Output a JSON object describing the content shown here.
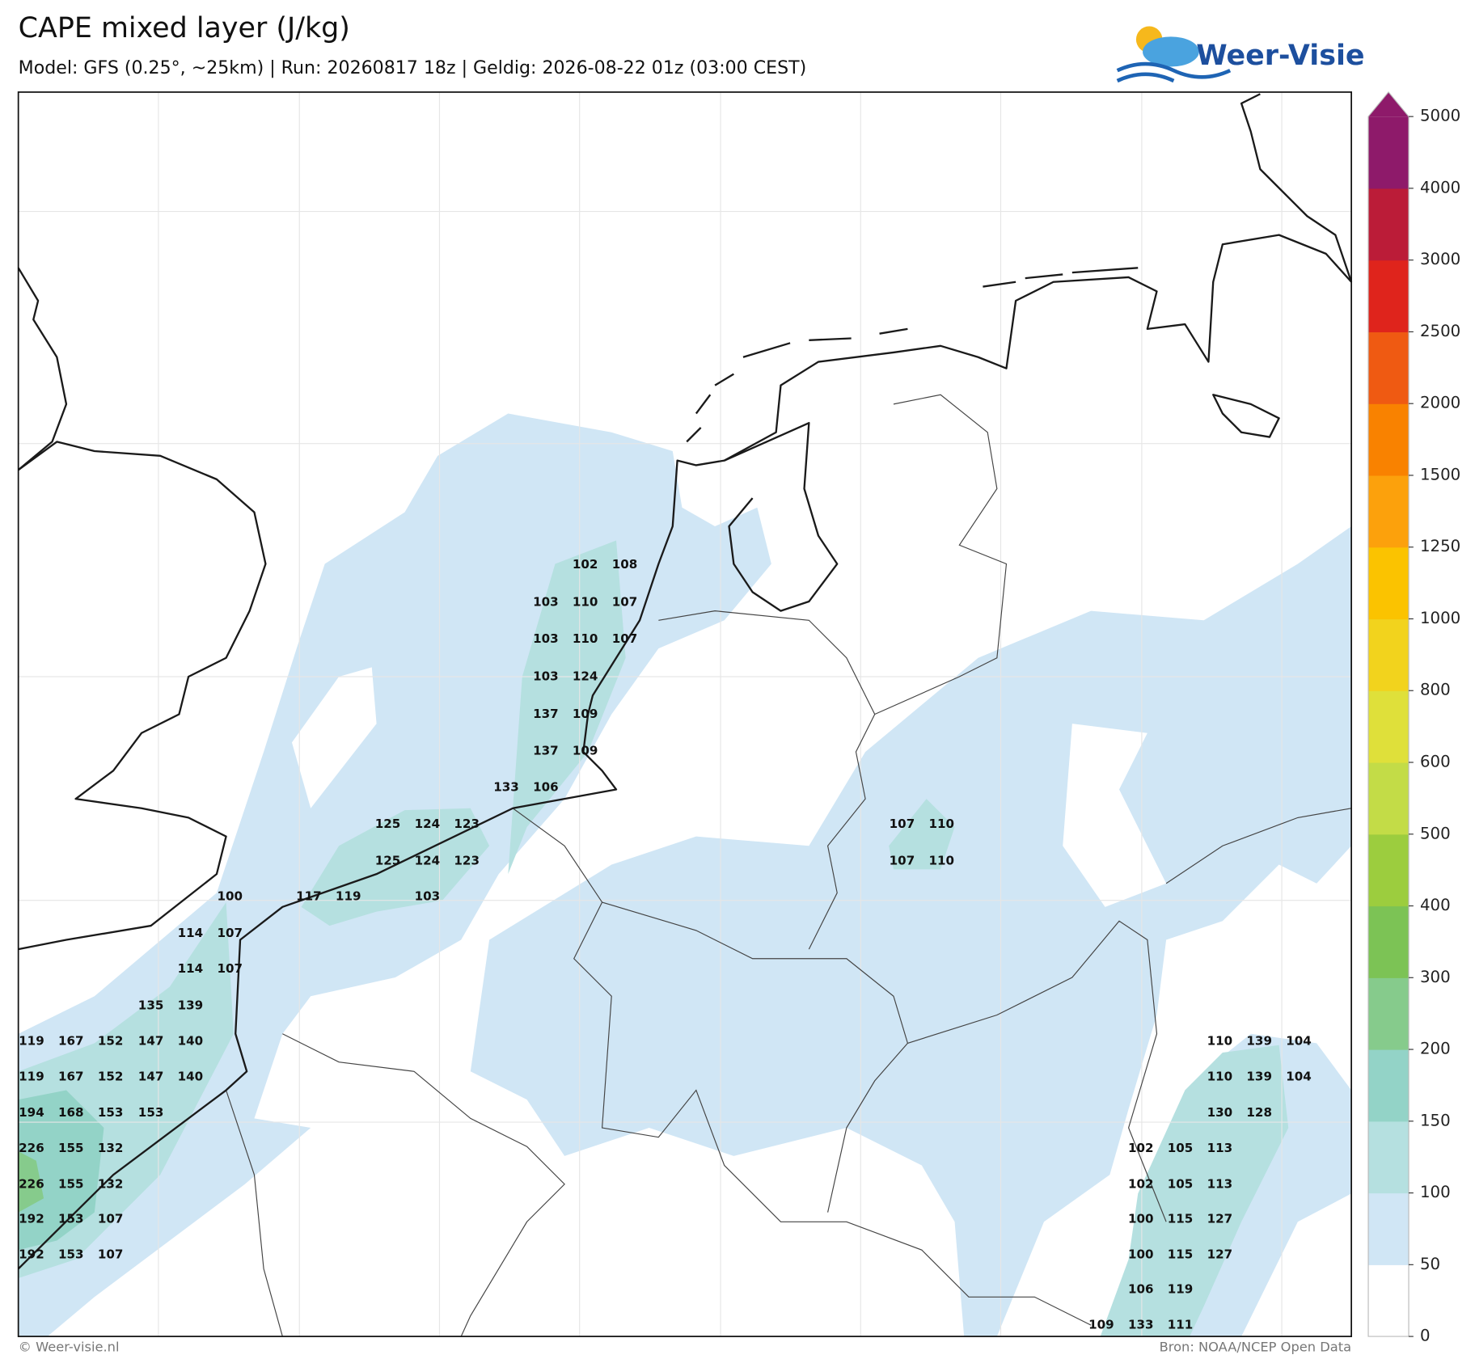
{
  "header": {
    "title": "CAPE mixed layer (J/kg)",
    "subtitle": "Model: GFS (0.25°, ~25km)  |  Run: 20260817 18z  |  Geldig: 2026-08-22 01z (03:00 CEST)"
  },
  "logo": "Weer-Visie",
  "colorbar": {
    "ticks": [
      0,
      50,
      100,
      150,
      200,
      300,
      400,
      500,
      600,
      800,
      1000,
      1250,
      1500,
      2000,
      2500,
      3000,
      4000,
      5000
    ],
    "colors": [
      "#ffffff",
      "#d0e6f5",
      "#b5e0e0",
      "#93d3c7",
      "#86cb8c",
      "#7cc355",
      "#9ccd3e",
      "#c3dc47",
      "#dfe03a",
      "#f2d31d",
      "#fbc300",
      "#fca10c",
      "#f98200",
      "#ef5a12",
      "#df241c",
      "#bb1c38",
      "#8e1a6a"
    ]
  },
  "map": {
    "labels": [
      102,
      108,
      103,
      110,
      107,
      103,
      110,
      107,
      103,
      124,
      137,
      109,
      137,
      109,
      133,
      106,
      125,
      124,
      123,
      107,
      110,
      125,
      124,
      123,
      107,
      110,
      100,
      117,
      119,
      103,
      114,
      107,
      114,
      107,
      135,
      139,
      119,
      167,
      152,
      147,
      140,
      110,
      139,
      104,
      119,
      167,
      152,
      147,
      140,
      110,
      139,
      104,
      194,
      168,
      153,
      153,
      130,
      128,
      226,
      155,
      132,
      102,
      105,
      113,
      226,
      155,
      132,
      102,
      105,
      113,
      192,
      153,
      107,
      100,
      115,
      127,
      192,
      153,
      107,
      100,
      115,
      127,
      106,
      119,
      109,
      133,
      111
    ]
  },
  "footer": {
    "left": "© Weer-visie.nl",
    "right": "Bron: NOAA/NCEP Open Data"
  }
}
